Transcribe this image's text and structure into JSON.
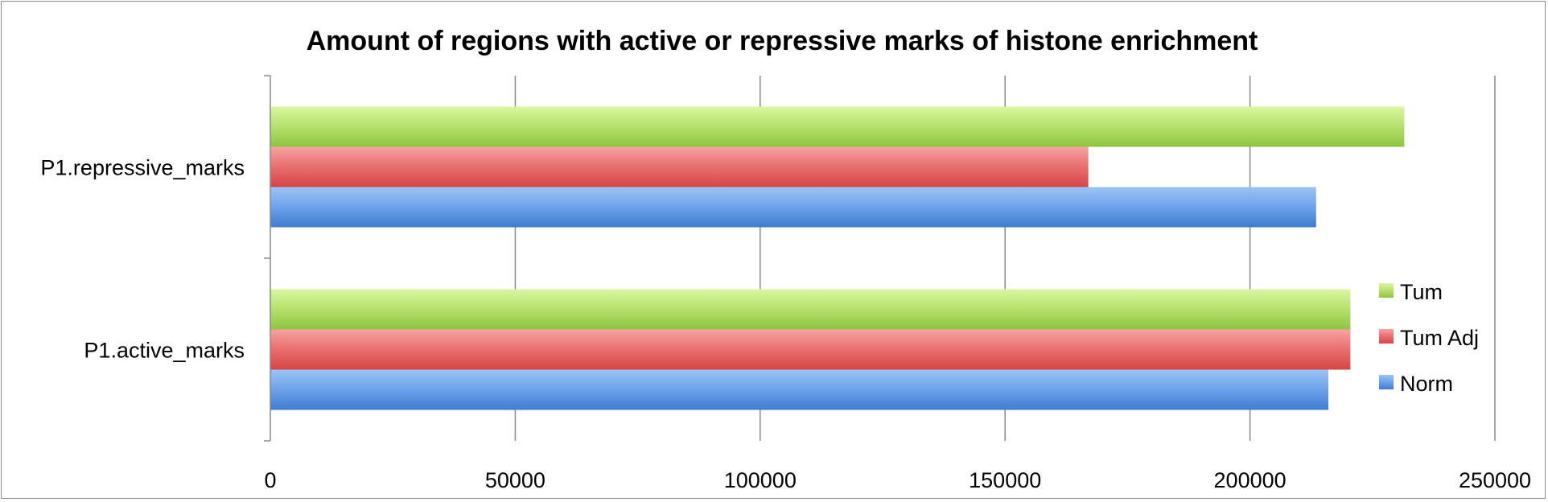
{
  "chart_data": {
    "type": "bar",
    "orientation": "horizontal",
    "title": "Amount of regions with active or repressive marks of histone enrichment",
    "categories": [
      "P1.active_marks",
      "P1.repressive_marks"
    ],
    "series": [
      {
        "name": "Norm",
        "values": [
          216000,
          213500
        ],
        "color": "#4a86d8"
      },
      {
        "name": "Tum Adj",
        "values": [
          220500,
          167000
        ],
        "color": "#e05252"
      },
      {
        "name": "Tum",
        "values": [
          220500,
          231500
        ],
        "color": "#9fd04a"
      }
    ],
    "xlim": [
      0,
      250000
    ],
    "xticks": [
      "0",
      "50000",
      "100000",
      "150000",
      "200000",
      "250000"
    ],
    "grid": true,
    "legend_position": "right"
  }
}
